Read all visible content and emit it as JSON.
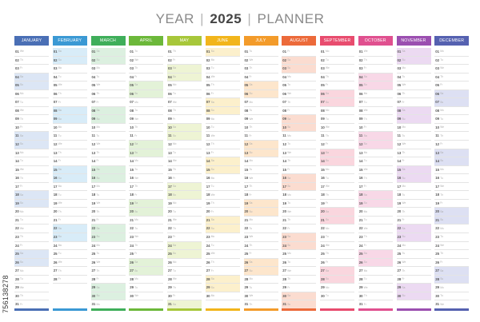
{
  "title": {
    "prefix": "YEAR",
    "year": "2025",
    "suffix": "PLANNER",
    "separator": "|"
  },
  "watermark": {
    "id": "756138278"
  },
  "months": [
    {
      "name": "JANUARY",
      "color": "#4a6fb5",
      "tint": "#dce6f5",
      "start": 3,
      "days": 31
    },
    {
      "name": "FEBRUARY",
      "color": "#3b99d4",
      "tint": "#d8ecf8",
      "start": 6,
      "days": 28
    },
    {
      "name": "MARCH",
      "color": "#3fae5a",
      "tint": "#dcf0e0",
      "start": 6,
      "days": 31
    },
    {
      "name": "APRIL",
      "color": "#6cb83a",
      "tint": "#e3f2d8",
      "start": 2,
      "days": 30
    },
    {
      "name": "MAY",
      "color": "#a7c73a",
      "tint": "#eef4d4",
      "start": 4,
      "days": 31
    },
    {
      "name": "JUNE",
      "color": "#f2b51b",
      "tint": "#fcf0cc",
      "start": 0,
      "days": 30
    },
    {
      "name": "JULY",
      "color": "#f39b2a",
      "tint": "#fde6cc",
      "start": 2,
      "days": 31
    },
    {
      "name": "AUGUST",
      "color": "#ec6a3a",
      "tint": "#fbdcd0",
      "start": 5,
      "days": 31
    },
    {
      "name": "SEPTEMBER",
      "color": "#e84c6e",
      "tint": "#fad6de",
      "start": 1,
      "days": 30
    },
    {
      "name": "OCTOBER",
      "color": "#e0508f",
      "tint": "#f8d8e7",
      "start": 3,
      "days": 31
    },
    {
      "name": "NOVEMBER",
      "color": "#9b4fb0",
      "tint": "#ecdaf2",
      "start": 6,
      "days": 30
    },
    {
      "name": "DECEMBER",
      "color": "#5561b0",
      "tint": "#dde0f3",
      "start": 1,
      "days": 31
    }
  ],
  "weekday_abbr": [
    "Su",
    "Mo",
    "Tu",
    "We",
    "Th",
    "Fr",
    "Sa"
  ]
}
